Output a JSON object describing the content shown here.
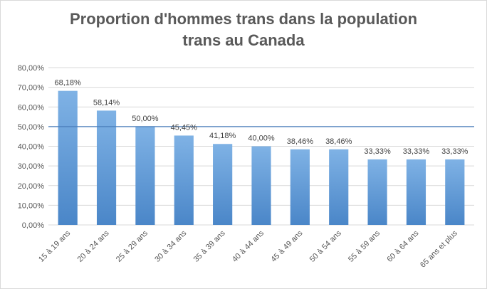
{
  "chart_data": {
    "type": "bar",
    "title_line1": "Proportion  d'hommes trans dans la population",
    "title_line2": "trans au Canada",
    "categories": [
      "15 à 19 ans",
      "20 à 24 ans",
      "25 à 29 ans",
      "30 à 34 ans",
      "35 à 39 ans",
      "40 à 44 ans",
      "45 à 49 ans",
      "50 à 54 ans",
      "55 à 59 ans",
      "60 à 64 ans",
      "65 ans et plus"
    ],
    "values": [
      68.18,
      58.14,
      50.0,
      45.45,
      41.18,
      40.0,
      38.46,
      38.46,
      33.33,
      33.33,
      33.33
    ],
    "value_labels": [
      "68,18%",
      "58,14%",
      "50,00%",
      "45,45%",
      "41,18%",
      "40,00%",
      "38,46%",
      "38,46%",
      "33,33%",
      "33,33%",
      "33,33%"
    ],
    "ylim": [
      0,
      80
    ],
    "yticks": [
      "0,00%",
      "10,00%",
      "20,00%",
      "30,00%",
      "40,00%",
      "50,00%",
      "60,00%",
      "70,00%",
      "80,00%"
    ],
    "reference_line": 50,
    "grid": true,
    "colors": {
      "bar_top": "#7fb2e5",
      "bar_bottom": "#4a86c8",
      "reference": "#4a7ebb",
      "grid": "#d9d9d9"
    }
  }
}
